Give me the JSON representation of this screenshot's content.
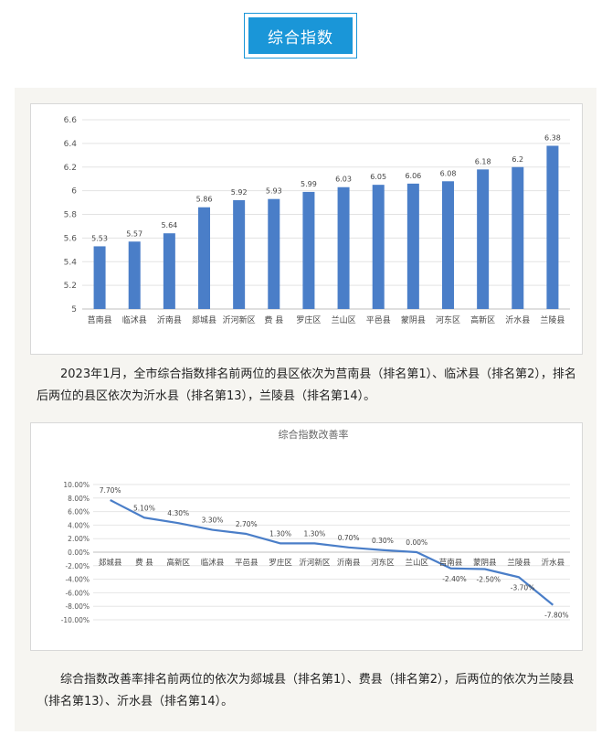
{
  "header": {
    "title": "综合指数"
  },
  "chart_data": [
    {
      "type": "bar",
      "title": "",
      "categories": [
        "莒南县",
        "临沭县",
        "沂南县",
        "郯城县",
        "沂河新区",
        "费 县",
        "罗庄区",
        "兰山区",
        "平邑县",
        "蒙阴县",
        "河东区",
        "高新区",
        "沂水县",
        "兰陵县"
      ],
      "values": [
        5.53,
        5.57,
        5.64,
        5.86,
        5.92,
        5.93,
        5.99,
        6.03,
        6.05,
        6.06,
        6.08,
        6.18,
        6.2,
        6.38
      ],
      "value_labels": [
        "5.53",
        "5.57",
        "5.64",
        "5.86",
        "5.92",
        "5.93",
        "5.99",
        "6.03",
        "6.05",
        "6.06",
        "6.08",
        "6.18",
        "6.2",
        "6.38"
      ],
      "ylim": [
        5,
        6.6
      ],
      "yticks": [
        "5",
        "5.2",
        "5.4",
        "5.6",
        "5.8",
        "6",
        "6.2",
        "6.4",
        "6.6"
      ],
      "color": "#4a7ec8"
    },
    {
      "type": "line",
      "title": "综合指数改善率",
      "categories": [
        "郯城县",
        "费 县",
        "高新区",
        "临沭县",
        "平邑县",
        "罗庄区",
        "沂河新区",
        "沂南县",
        "河东区",
        "兰山区",
        "莒南县",
        "蒙阴县",
        "兰陵县",
        "沂水县"
      ],
      "values": [
        7.7,
        5.1,
        4.3,
        3.3,
        2.7,
        1.3,
        1.3,
        0.7,
        0.3,
        0.0,
        -2.4,
        -2.5,
        -3.7,
        -7.8
      ],
      "value_labels": [
        "7.70%",
        "5.10%",
        "4.30%",
        "3.30%",
        "2.70%",
        "1.30%",
        "1.30%",
        "0.70%",
        "0.30%",
        "0.00%",
        "-2.40%",
        "-2.50%",
        "-3.70%",
        "-7.80%"
      ],
      "ylim": [
        -10,
        10
      ],
      "yticks": [
        "-10.00%",
        "-8.00%",
        "-6.00%",
        "-4.00%",
        "-2.00%",
        "0.00%",
        "2.00%",
        "4.00%",
        "6.00%",
        "8.00%",
        "10.00%"
      ],
      "color": "#4a7ec8"
    }
  ],
  "paragraphs": {
    "p1": "2023年1月，全市综合指数排名前两位的县区依次为莒南县（排名第1）、临沭县（排名第2），排名后两位的县区依次为沂水县（排名第13），兰陵县（排名第14）。",
    "p2": "综合指数改善率排名前两位的依次为郯城县（排名第1）、费县（排名第2），后两位的依次为兰陵县（排名第13）、沂水县（排名第14）。"
  }
}
